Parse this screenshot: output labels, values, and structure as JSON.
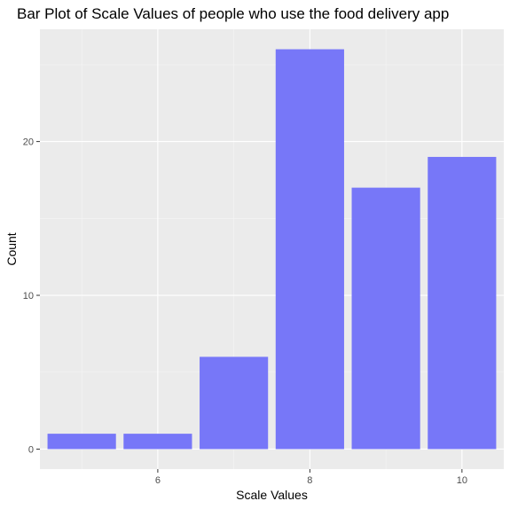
{
  "chart_data": {
    "type": "bar",
    "title": "Bar Plot of Scale Values of people who use the food delivery app",
    "xlabel": "Scale Values",
    "ylabel": "Count",
    "categories": [
      5,
      6,
      7,
      8,
      9,
      10
    ],
    "values": [
      1,
      1,
      6,
      26,
      17,
      19
    ],
    "xlim": [
      4.45,
      10.55
    ],
    "ylim": [
      -1.3,
      27.3
    ],
    "x_ticks": [
      6,
      8,
      10
    ],
    "y_ticks": [
      0,
      10,
      20
    ],
    "grid": true,
    "legend": "none",
    "colors": {
      "bar": "#7777f8",
      "panel": "#ebebeb",
      "grid_major": "#ffffff",
      "grid_minor": "#f5f5f5"
    }
  }
}
